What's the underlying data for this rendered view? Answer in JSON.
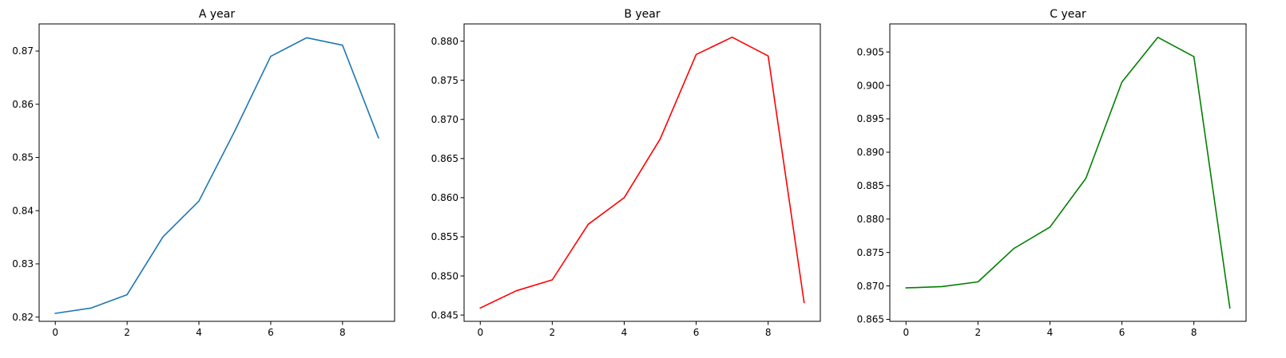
{
  "chart_data": [
    {
      "type": "line",
      "title": "A year",
      "color": "#1f77b4",
      "x": [
        0,
        1,
        2,
        3,
        4,
        5,
        6,
        7,
        8,
        9
      ],
      "series": [
        {
          "values": [
            0.8207,
            0.8217,
            0.8242,
            0.8351,
            0.8418,
            0.855,
            0.869,
            0.8725,
            0.8711,
            0.8537
          ]
        }
      ],
      "xticks": [
        0,
        2,
        4,
        6,
        8
      ],
      "xtick_labels": [
        "0",
        "2",
        "4",
        "6",
        "8"
      ],
      "yticks": [
        0.82,
        0.83,
        0.84,
        0.85,
        0.86,
        0.87
      ],
      "ytick_labels": [
        "0.82",
        "0.83",
        "0.84",
        "0.85",
        "0.86",
        "0.87"
      ],
      "xlim": [
        -0.45,
        9.45
      ],
      "ylim": [
        0.8192,
        0.8751
      ],
      "grid": false
    },
    {
      "type": "line",
      "title": "B year",
      "color": "#ff0000",
      "x": [
        0,
        1,
        2,
        3,
        4,
        5,
        6,
        7,
        8,
        9
      ],
      "series": [
        {
          "values": [
            0.8459,
            0.8481,
            0.8495,
            0.8566,
            0.86,
            0.8675,
            0.8783,
            0.8805,
            0.8781,
            0.8466
          ]
        }
      ],
      "xticks": [
        0,
        2,
        4,
        6,
        8
      ],
      "xtick_labels": [
        "0",
        "2",
        "4",
        "6",
        "8"
      ],
      "yticks": [
        0.845,
        0.85,
        0.855,
        0.86,
        0.865,
        0.87,
        0.875,
        0.88
      ],
      "ytick_labels": [
        "0.845",
        "0.850",
        "0.855",
        "0.860",
        "0.865",
        "0.870",
        "0.875",
        "0.880"
      ],
      "xlim": [
        -0.45,
        9.45
      ],
      "ylim": [
        0.8442,
        0.8822
      ],
      "grid": false
    },
    {
      "type": "line",
      "title": "C year",
      "color": "#008000",
      "x": [
        0,
        1,
        2,
        3,
        4,
        5,
        6,
        7,
        8,
        9
      ],
      "series": [
        {
          "values": [
            0.8697,
            0.8699,
            0.8706,
            0.8756,
            0.8788,
            0.8861,
            0.9005,
            0.9072,
            0.9043,
            0.8667
          ]
        }
      ],
      "xticks": [
        0,
        2,
        4,
        6,
        8
      ],
      "xtick_labels": [
        "0",
        "2",
        "4",
        "6",
        "8"
      ],
      "yticks": [
        0.865,
        0.87,
        0.875,
        0.88,
        0.885,
        0.89,
        0.895,
        0.9,
        0.905
      ],
      "ytick_labels": [
        "0.865",
        "0.870",
        "0.875",
        "0.880",
        "0.885",
        "0.890",
        "0.895",
        "0.900",
        "0.905"
      ],
      "xlim": [
        -0.45,
        9.45
      ],
      "ylim": [
        0.8647,
        0.9092
      ],
      "grid": false
    }
  ]
}
